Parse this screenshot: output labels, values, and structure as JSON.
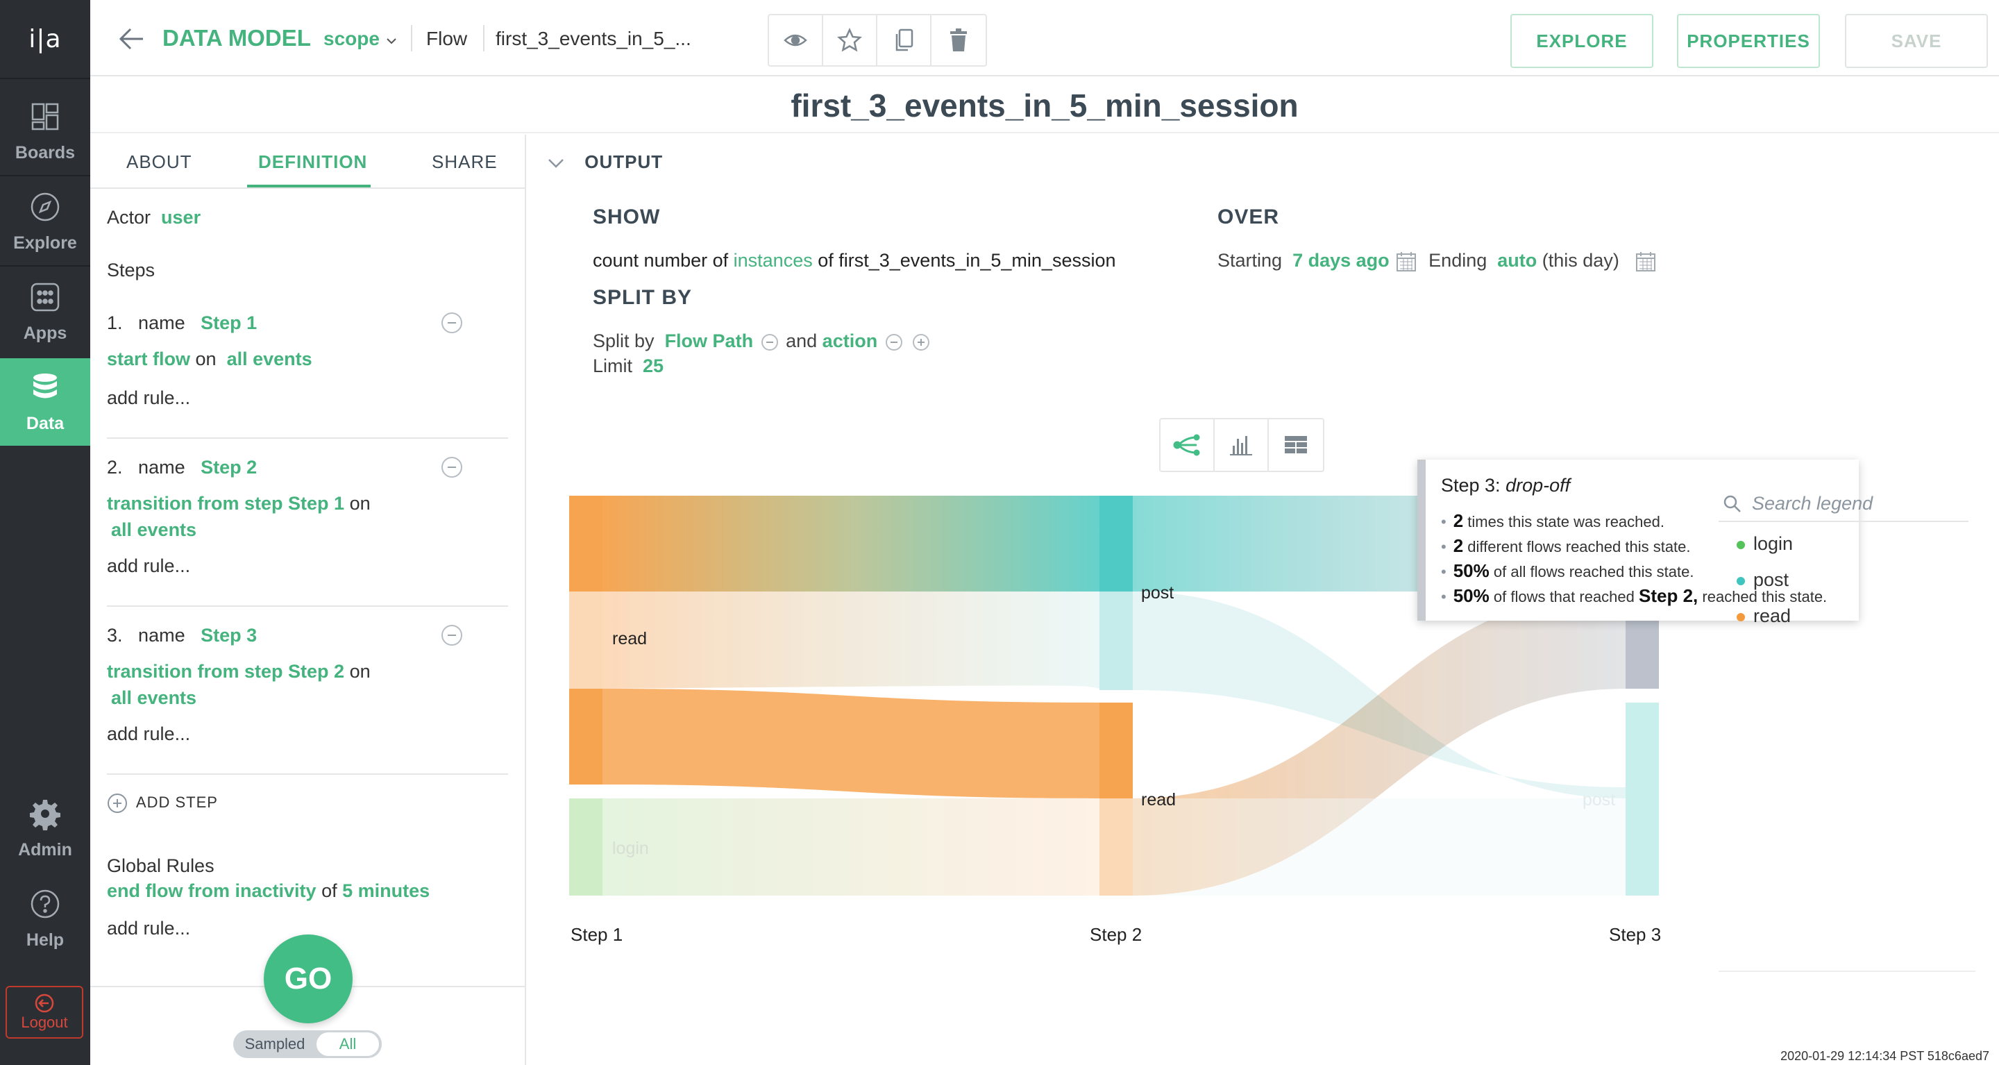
{
  "app": {
    "logo": "i|a"
  },
  "nav": {
    "items": [
      {
        "label": "Boards",
        "icon": "boards-icon"
      },
      {
        "label": "Explore",
        "icon": "compass-icon"
      },
      {
        "label": "Apps",
        "icon": "apps-grid-icon"
      },
      {
        "label": "Data",
        "icon": "database-icon"
      },
      {
        "label": "Admin",
        "icon": "gear-icon"
      },
      {
        "label": "Help",
        "icon": "help-icon"
      }
    ],
    "logout": "Logout"
  },
  "topbar": {
    "title": "DATA MODEL",
    "scope": "scope",
    "breadcrumb_flow": "Flow",
    "breadcrumb_name": "first_3_events_in_5_...",
    "explore_label": "EXPLORE",
    "properties_label": "PROPERTIES",
    "save_label": "SAVE"
  },
  "page": {
    "title": "first_3_events_in_5_min_session"
  },
  "left": {
    "tabs": [
      "ABOUT",
      "DEFINITION",
      "SHARE"
    ],
    "actor_label": "Actor",
    "actor_value": "user",
    "steps_label": "Steps",
    "name_label": "name",
    "steps": [
      {
        "num": "1.",
        "name": "Step 1",
        "rule_action": "start flow",
        "rule_mid": "on",
        "rule_target": "all events",
        "add_rule": "add rule..."
      },
      {
        "num": "2.",
        "name": "Step 2",
        "rule_action": "transition from step Step 1",
        "rule_mid": "on",
        "rule_target": "all events",
        "add_rule": "add rule..."
      },
      {
        "num": "3.",
        "name": "Step 3",
        "rule_action": "transition from step Step 2",
        "rule_mid": "on",
        "rule_target": "all events",
        "add_rule": "add rule..."
      }
    ],
    "add_step": "ADD STEP",
    "global_rules_label": "Global Rules",
    "global_rule_action": "end flow from inactivity",
    "global_rule_mid": "of",
    "global_rule_value": "5 minutes",
    "global_add_rule": "add rule...",
    "go_label": "GO",
    "toggle_sampled": "Sampled",
    "toggle_all": "All"
  },
  "output": {
    "section_label": "OUTPUT",
    "show_label": "SHOW",
    "show_prefix": "count number of",
    "show_measure": "instances",
    "show_suffix": "of first_3_events_in_5_min_session",
    "over_label": "OVER",
    "starting_label": "Starting",
    "starting_value": "7 days ago",
    "ending_label": "Ending",
    "ending_value": "auto",
    "ending_suffix": "(this day)",
    "splitby_label": "SPLIT BY",
    "split_prefix": "Split by",
    "split_1": "Flow Path",
    "split_and": "and",
    "split_2": "action",
    "limit_label": "Limit",
    "limit_value": "25"
  },
  "tooltip": {
    "title_prefix": "Step 3:",
    "title_state": "drop-off",
    "rows": [
      {
        "bold": "2",
        "text": "times this state was reached.",
        "bold2": "",
        "text2": ""
      },
      {
        "bold": "2",
        "text": "different flows reached this state.",
        "bold2": "",
        "text2": ""
      },
      {
        "bold": "50%",
        "text": "of all flows reached this state.",
        "bold2": "",
        "text2": ""
      },
      {
        "bold": "50%",
        "text": "of flows that reached",
        "bold2": "Step 2,",
        "text2": "reached this state."
      }
    ]
  },
  "legend": {
    "search_placeholder": "Search legend",
    "items": [
      {
        "label": "login",
        "color": "#55c25a"
      },
      {
        "label": "post",
        "color": "#3fc4c0"
      },
      {
        "label": "read",
        "color": "#f59a3c"
      }
    ]
  },
  "chart_data": {
    "type": "sankey",
    "steps": [
      "Step 1",
      "Step 2",
      "Step 3"
    ],
    "node_labels": [
      {
        "step": "Step 1",
        "label": "read"
      },
      {
        "step": "Step 1",
        "label": "login"
      },
      {
        "step": "Step 2",
        "label": "post"
      },
      {
        "step": "Step 2",
        "label": "read"
      },
      {
        "step": "Step 3",
        "label": "post"
      }
    ],
    "colors": {
      "login": "#55c25a",
      "post": "#3fc4c0",
      "read": "#f59a3c",
      "drop-off": "#b6bcc6"
    }
  },
  "footer": {
    "timestamp": "2020-01-29 12:14:34 PST 518c6aed7"
  }
}
